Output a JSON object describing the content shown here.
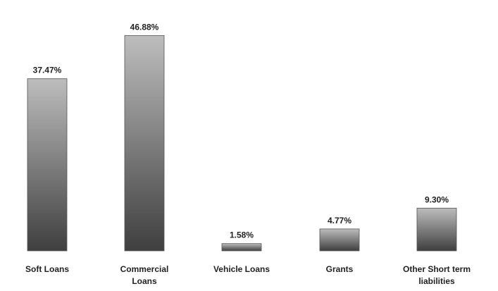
{
  "chart_data": {
    "type": "bar",
    "title": "",
    "xlabel": "",
    "ylabel": "",
    "categories": [
      "Soft Loans",
      "Commercial Loans",
      "Vehicle Loans",
      "Grants",
      "Other Short term liabilities"
    ],
    "category_lines": [
      [
        "Soft Loans"
      ],
      [
        "Commercial",
        "Loans"
      ],
      [
        "Vehicle Loans"
      ],
      [
        "Grants"
      ],
      [
        "Other Short term",
        "liabilities"
      ]
    ],
    "values": [
      37.47,
      46.88,
      1.58,
      4.77,
      9.3
    ],
    "value_labels": [
      "37.47%",
      "46.88%",
      "1.58%",
      "4.77%",
      "9.30%"
    ],
    "ylim": [
      0,
      50
    ],
    "grid": false,
    "legend": "none",
    "colors": {
      "bar_top": "#bdbdbd",
      "bar_bottom": "#3f3f3f",
      "text": "#222222"
    }
  }
}
